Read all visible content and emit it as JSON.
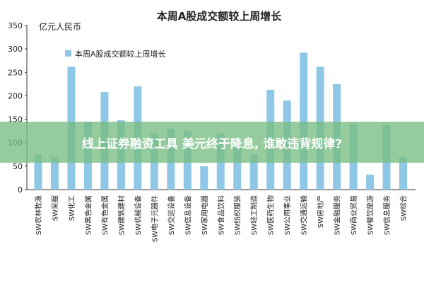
{
  "chart_data": {
    "type": "bar",
    "title": "本周A股成交额较上周增长",
    "ylabel": "亿元人民币",
    "xlabel": "",
    "ylim": [
      0,
      350
    ],
    "yticks": [
      0,
      50,
      100,
      150,
      200,
      250,
      300,
      350
    ],
    "grid": false,
    "legend_position": "top-left",
    "bar_color": "#8fc7e6",
    "categories": [
      "SW农林牧渔",
      "SW采掘",
      "SW化工",
      "SW黑色金属",
      "SW有色金属",
      "SW建筑建材",
      "SW机械设备",
      "SW电子元器件",
      "SW交运设备",
      "SW信息设备",
      "SW家用电器",
      "SW食品饮料",
      "SW纺织服装",
      "SW轻工制造",
      "SW医药生物",
      "SW公用事业",
      "SW交通运输",
      "SW房地产",
      "SW金融服务",
      "SW商业贸易",
      "SW餐饮旅游",
      "SW信息服务",
      "SW综合"
    ],
    "series": [
      {
        "name": "本周A股成交额较上周增长",
        "values": [
          75,
          70,
          262,
          145,
          208,
          148,
          220,
          120,
          130,
          125,
          50,
          120,
          110,
          75,
          213,
          190,
          292,
          262,
          225,
          140,
          32,
          138,
          70
        ]
      }
    ]
  },
  "overlay": {
    "headline": "线上证券融资工具 美元终于降息, 谁敢违背规律?"
  }
}
